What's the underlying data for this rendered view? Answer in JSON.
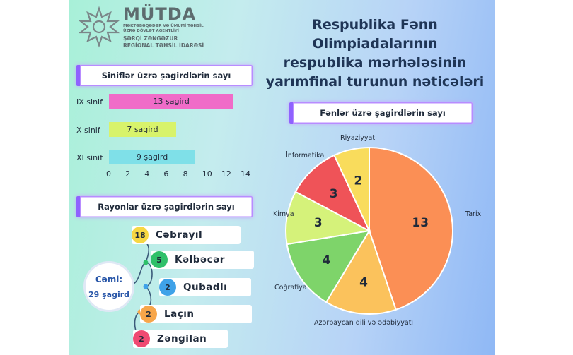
{
  "header": {
    "logo_name": "MÜTDA",
    "logo_sub_1": "MƏKTƏBƏQƏDƏR VƏ ÜMUMİ TƏHSİL",
    "logo_sub_2": "ÜZRƏ DÖVLƏT AGENTLİYİ",
    "logo_region_1": "ŞƏRQİ ZƏNGƏZUR",
    "logo_region_2": "REGİONAL TƏHSİL İDARƏSİ",
    "title_lines": [
      "Respublika Fənn Olimpiadalarının",
      "respublika mərhələsinin",
      "yarımfinal turunun nəticələri"
    ]
  },
  "colors": {
    "accent": "#8f62ff",
    "pink": "#f06cc8",
    "lime": "#d8f36b",
    "cyan": "#7fe0e8"
  },
  "chart_data": [
    {
      "type": "bar",
      "orientation": "horizontal",
      "title": "Siniflər üzrə şagirdlərin sayı",
      "categories": [
        "IX sinif",
        "X sinif",
        "XI sinif"
      ],
      "values": [
        13,
        7,
        9
      ],
      "data_labels": [
        "13 şagird",
        "7 şagird",
        "9 şagird"
      ],
      "colors": [
        "#f06cc8",
        "#d8f36b",
        "#7fe0e8"
      ],
      "xlim": [
        0,
        14
      ],
      "xticks": [
        "0",
        "2",
        "4",
        "6",
        "8",
        "10",
        "12",
        "14"
      ],
      "grid": false
    },
    {
      "type": "table",
      "title": "Rayonlar üzrə şagirdlərin sayı",
      "rows": [
        {
          "name": "Cəbrayıl",
          "value": "18",
          "color": "#f7d743"
        },
        {
          "name": "Kəlbəcər",
          "value": "5",
          "color": "#2fc06a"
        },
        {
          "name": "Qubadlı",
          "value": "2",
          "color": "#3fa2e8"
        },
        {
          "name": "Laçın",
          "value": "2",
          "color": "#f7a64a"
        },
        {
          "name": "Zəngilan",
          "value": "2",
          "color": "#ef4a72"
        }
      ],
      "total_label": "Cəmi:",
      "total_value": "29 şagird"
    },
    {
      "type": "pie",
      "title": "Fənlər üzrə şagirdlərin sayı",
      "slices": [
        {
          "name": "Tarix",
          "value": 13,
          "color": "#fb8f55"
        },
        {
          "name": "Azərbaycan dili və ədəbiyyatı",
          "value": 4,
          "color": "#fbc25c"
        },
        {
          "name": "Coğrafiya",
          "value": 4,
          "color": "#7ed46a"
        },
        {
          "name": "Kimya",
          "value": 3,
          "color": "#d5f27a"
        },
        {
          "name": "İnformatika",
          "value": 3,
          "color": "#ef5358"
        },
        {
          "name": "Riyaziyyat",
          "value": 2,
          "color": "#f9dc5c"
        }
      ]
    }
  ]
}
